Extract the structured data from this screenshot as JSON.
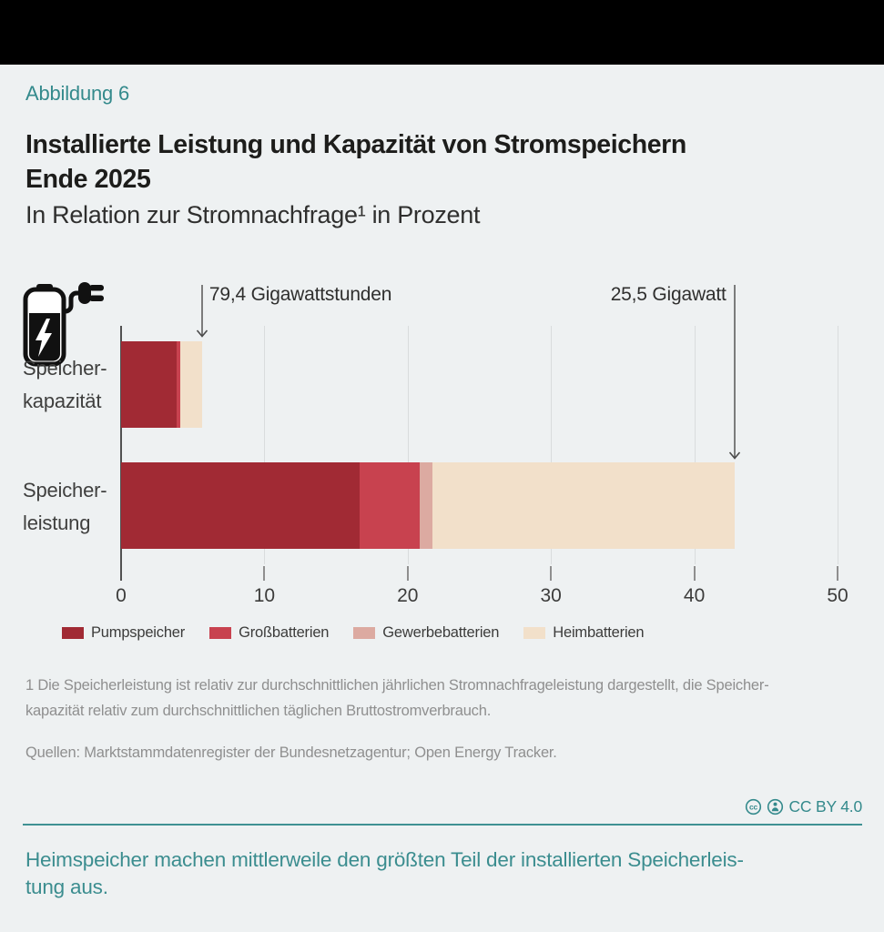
{
  "header": {
    "kicker": "Abbildung 6",
    "title": "Installierte Leistung und Kapazität von Stromspeichern\nEnde 2025",
    "subtitle": "In Relation zur Stromnachfrage¹ in Prozent"
  },
  "chart_data": {
    "type": "bar",
    "orientation": "horizontal",
    "value_unit": "Prozent",
    "xlim": [
      0,
      50
    ],
    "ticks": [
      0,
      10,
      20,
      30,
      40,
      50
    ],
    "grid": true,
    "legend_position": "bottom",
    "series": [
      {
        "name": "Pumpspeicher",
        "color": "#a12a34"
      },
      {
        "name": "Großbatterien",
        "color": "#c8424f"
      },
      {
        "name": "Gewerbebatterien",
        "color": "#dcaaa1"
      },
      {
        "name": "Heimbatterien",
        "color": "#f2e0ca"
      }
    ],
    "rows": [
      {
        "label": "Speicher-\nkapazität",
        "total_percent": 5.65,
        "annotation": {
          "text": "79,4 Gigawattstunden",
          "side": "right"
        },
        "segments": [
          {
            "series": "Pumpspeicher",
            "value": 3.85
          },
          {
            "series": "Großbatterien",
            "value": 0.25
          },
          {
            "series": "Gewerbebatterien",
            "value": 0.05
          },
          {
            "series": "Heimbatterien",
            "value": 1.5
          }
        ]
      },
      {
        "label": "Speicher-\nleistung",
        "total_percent": 42.8,
        "annotation": {
          "text": "25,5 Gigawatt",
          "side": "left"
        },
        "segments": [
          {
            "series": "Pumpspeicher",
            "value": 16.65
          },
          {
            "series": "Großbatterien",
            "value": 4.2
          },
          {
            "series": "Gewerbebatterien",
            "value": 0.9
          },
          {
            "series": "Heimbatterien",
            "value": 21.05
          }
        ]
      }
    ]
  },
  "footnote": {
    "note": "1  Die Speicherleistung ist relativ zur durchschnittlichen jährlichen Stromnachfrageleistung dargestellt, die Speicher-\nkapazität relativ zum durchschnittlichen täglichen Bruttostromverbrauch.",
    "sources": "Quellen: Marktstammdatenregister der Bundesnetzagentur; Open Energy Tracker."
  },
  "license": {
    "label": "CC BY 4.0",
    "icons": [
      "cc-icon",
      "attribution-icon"
    ]
  },
  "takeaway": {
    "text": "Heimspeicher machen mittlerweile den größten Teil der installierten Speicherleis-\ntung aus."
  }
}
